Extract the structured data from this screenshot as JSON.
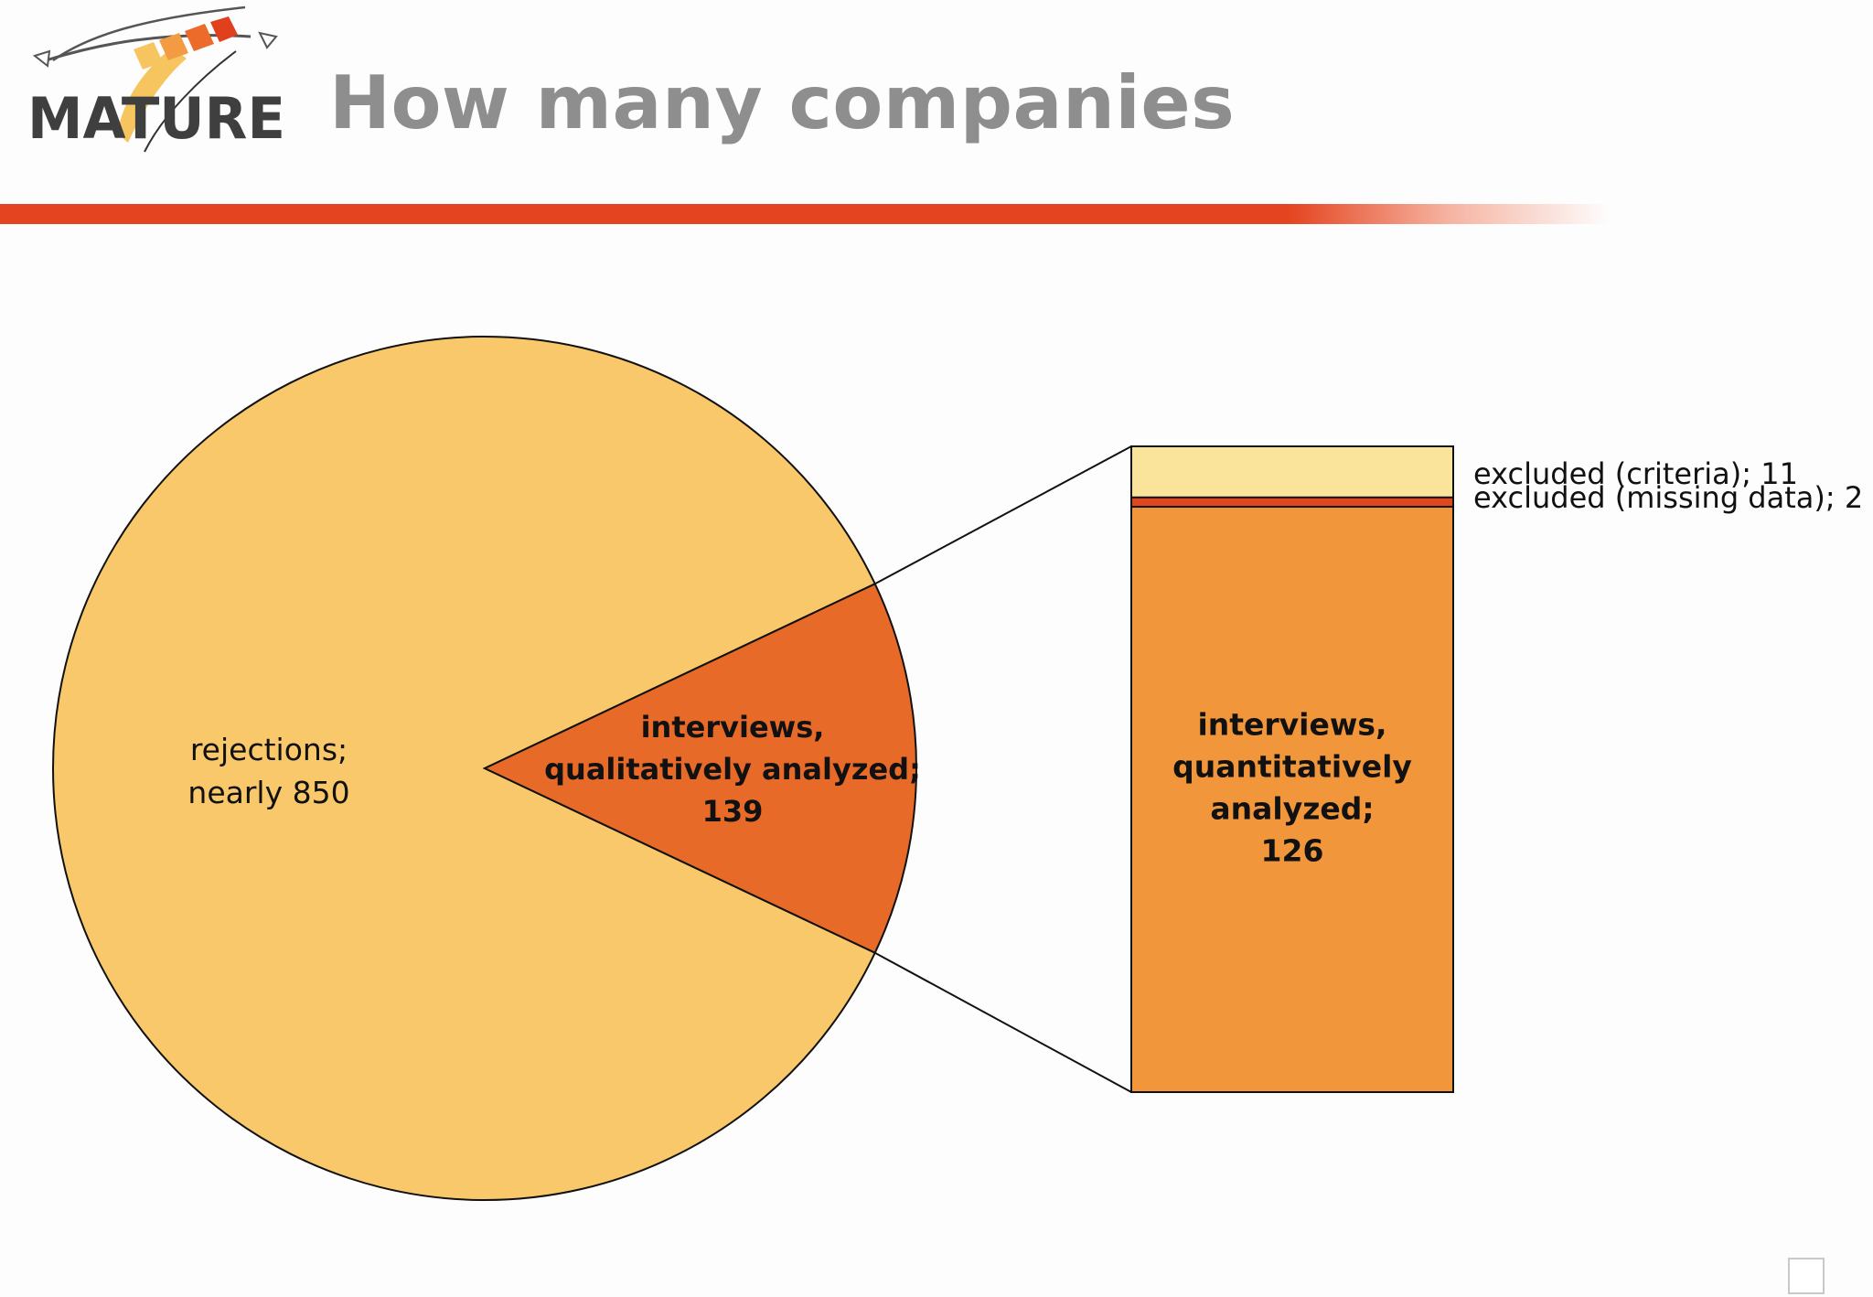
{
  "slide": {
    "logo_text": "MATURE",
    "title": "How many companies"
  },
  "colors": {
    "rejections": "#f9c86b",
    "qualitative": "#e86a28",
    "quantitative": "#f1963a",
    "excluded_criteria": "#fae49c",
    "excluded_missing": "#e2461c",
    "accent_rule": "#e4441f"
  },
  "chart_data": [
    {
      "type": "pie",
      "title": "",
      "slices": [
        {
          "label_lines": [
            "rejections;",
            "nearly 850"
          ],
          "value": 850,
          "bold": false
        },
        {
          "label_lines": [
            "interviews,",
            "qualitatively analyzed;",
            "139"
          ],
          "value": 139,
          "bold": true
        }
      ],
      "exploded_slice": 1
    },
    {
      "type": "bar",
      "stacked": true,
      "title": "",
      "segments": [
        {
          "label": "excluded (criteria); 11",
          "value": 11,
          "position": "top"
        },
        {
          "label": "excluded (missing data); 2",
          "value": 2,
          "position": "middle"
        },
        {
          "label_lines": [
            "interviews,",
            "quantitatively",
            "analyzed;",
            "126"
          ],
          "value": 126,
          "position": "bottom",
          "bold": true
        }
      ],
      "total": 139
    }
  ]
}
